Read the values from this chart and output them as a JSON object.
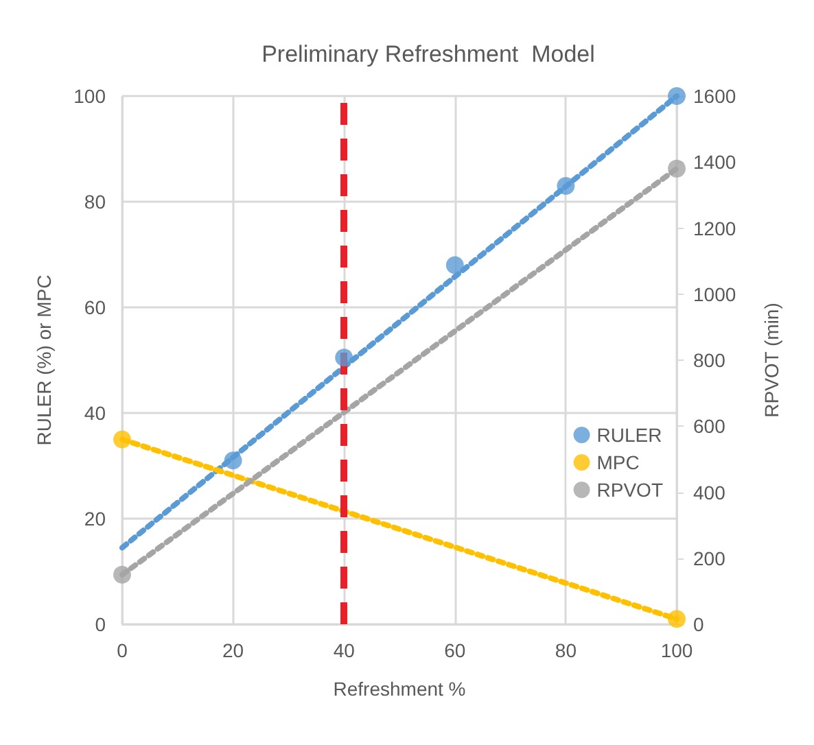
{
  "chart_data": {
    "type": "scatter",
    "title": "Preliminary Refreshment  Model",
    "xlabel": "Refreshment %",
    "ylabel": "RULER (%) or MPC",
    "y2label": "RPVOT (min)",
    "xlim": [
      0,
      100
    ],
    "xticks": [
      0,
      20,
      40,
      60,
      80,
      100
    ],
    "ylim": [
      0,
      100
    ],
    "yticks": [
      0,
      20,
      40,
      60,
      80,
      100
    ],
    "y2lim": [
      0,
      1600
    ],
    "y2ticks": [
      0,
      200,
      400,
      600,
      800,
      1000,
      1200,
      1400,
      1600
    ],
    "grid": true,
    "legend": "right",
    "marker": "circle",
    "series": [
      {
        "name": "RULER",
        "color": "#5b9bd5",
        "x": [
          20,
          40,
          60,
          80,
          100
        ],
        "values": [
          31,
          50.5,
          68,
          83,
          100
        ]
      },
      {
        "name": "MPC",
        "color": "#ffc000",
        "x": [
          0,
          100
        ],
        "values": [
          35,
          1
        ]
      },
      {
        "name": "RPVOT",
        "color": "#a5a5a5",
        "axis": "y2",
        "x": [
          0,
          100
        ],
        "values": [
          150,
          1380
        ]
      },
      {
        "type": "line",
        "color": "#5b9bd5",
        "x": [
          0,
          100
        ],
        "values": [
          14.5,
          100
        ],
        "marker": "none",
        "line_style": "dotted"
      },
      {
        "type": "line",
        "color": "#ffc000",
        "x": [
          0,
          100
        ],
        "values": [
          35,
          1
        ],
        "marker": "none",
        "line_style": "dotted"
      },
      {
        "type": "line",
        "color": "#a5a5a5",
        "axis": "y2",
        "x": [
          0,
          100
        ],
        "values": [
          150,
          1380
        ],
        "marker": "none",
        "line_style": "dotted"
      }
    ],
    "ref_lines": [
      {
        "axis": "x",
        "value": 40,
        "color": "#e8202a",
        "line_style": "dashed"
      }
    ]
  }
}
